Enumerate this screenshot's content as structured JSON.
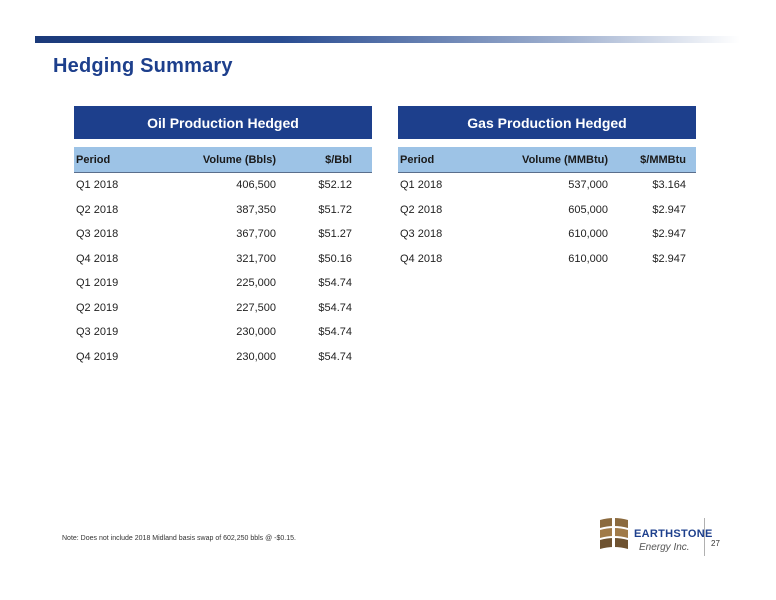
{
  "title": "Hedging Summary",
  "oil": {
    "heading": "Oil Production Hedged",
    "columns": [
      "Period",
      "Volume (Bbls)",
      "$/Bbl"
    ],
    "rows": [
      [
        "Q1 2018",
        "406,500",
        "$52.12"
      ],
      [
        "Q2 2018",
        "387,350",
        "$51.72"
      ],
      [
        "Q3 2018",
        "367,700",
        "$51.27"
      ],
      [
        "Q4 2018",
        "321,700",
        "$50.16"
      ],
      [
        "Q1 2019",
        "225,000",
        "$54.74"
      ],
      [
        "Q2 2019",
        "227,500",
        "$54.74"
      ],
      [
        "Q3 2019",
        "230,000",
        "$54.74"
      ],
      [
        "Q4 2019",
        "230,000",
        "$54.74"
      ]
    ]
  },
  "gas": {
    "heading": "Gas Production Hedged",
    "columns": [
      "Period",
      "Volume (MMBtu)",
      "$/MMBtu"
    ],
    "rows": [
      [
        "Q1 2018",
        "537,000",
        "$3.164"
      ],
      [
        "Q2 2018",
        "605,000",
        "$2.947"
      ],
      [
        "Q3 2018",
        "610,000",
        "$2.947"
      ],
      [
        "Q4 2018",
        "610,000",
        "$2.947"
      ]
    ]
  },
  "note": "Note: Does not include 2018 Midland basis swap of 602,250 bbls @ -$0.15.",
  "logo": {
    "name": "EARTHSTONE",
    "sub": "Energy Inc."
  },
  "page_number": "27",
  "colors": {
    "navy": "#1d3f8c",
    "header_blue": "#9dc3e6",
    "logo_brown": "#8b6a3e"
  }
}
